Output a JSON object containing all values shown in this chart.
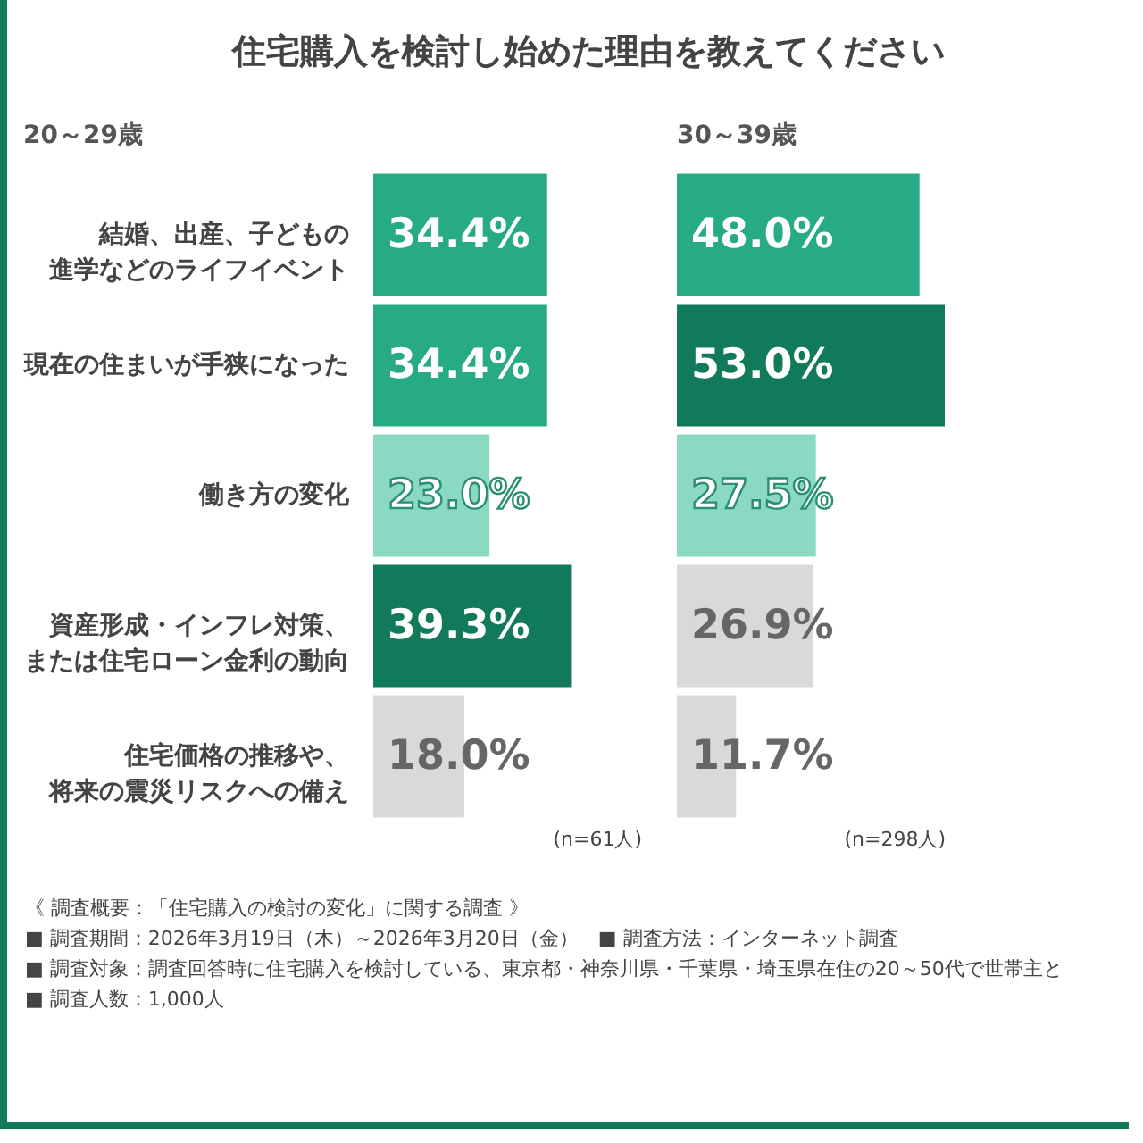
{
  "chart_data": [
    {
      "type": "bar",
      "orientation": "horizontal",
      "title": "住宅購入を検討し始めた理由を教えてください",
      "subtitle": "20～29歳",
      "categories": [
        "結婚、出産、子どもの進学などのライフイベント",
        "現在の住まいが手狭になった",
        "働き方の変化",
        "資産形成・インフレ対策、または住宅ローン金利の動向",
        "住宅価格の推移や、将来の震災リスクへの備え"
      ],
      "values": [
        34.4,
        34.4,
        23.0,
        39.3,
        18.0
      ],
      "colors": [
        "#26ab84",
        "#26ab84",
        "#8ad9c2",
        "#117a5a",
        "#d9d9d9"
      ],
      "value_labels": [
        "34.4%",
        "34.4%",
        "23.0%",
        "39.3%",
        "18.0%"
      ],
      "tick_labels": "y",
      "grid": false,
      "legend": false,
      "annotations": [
        "(n=61人)",
        "《 調査概要：「住宅購入の検討の変化」に関する調査 》",
        "■ 調査期間：2026年3月19日（木）～2026年3月20日（金）　■ 調査方法：インターネット調査",
        "■ 調査対象：調査回答時に住宅購入を検討している、東京都・神奈川県・千葉県・埼玉県在住の20～50代で世帯主と",
        "■ 調査人数：1,000人"
      ]
    },
    {
      "type": "bar",
      "orientation": "horizontal",
      "subtitle": "30～39歳",
      "categories": [
        null,
        null,
        null,
        null,
        null
      ],
      "values": [
        48.0,
        53.0,
        27.5,
        26.9,
        11.7
      ],
      "colors": [
        "#26ab84",
        "#117a5a",
        "#8ad9c2",
        "#d9d9d9",
        "#d9d9d9"
      ],
      "value_labels": [
        "48.0%",
        "53.0%",
        "27.5%",
        "26.9%",
        "11.7%"
      ],
      "tick_labels": false,
      "grid": false,
      "legend": false,
      "annotations": [
        "(n=298人)"
      ]
    }
  ]
}
